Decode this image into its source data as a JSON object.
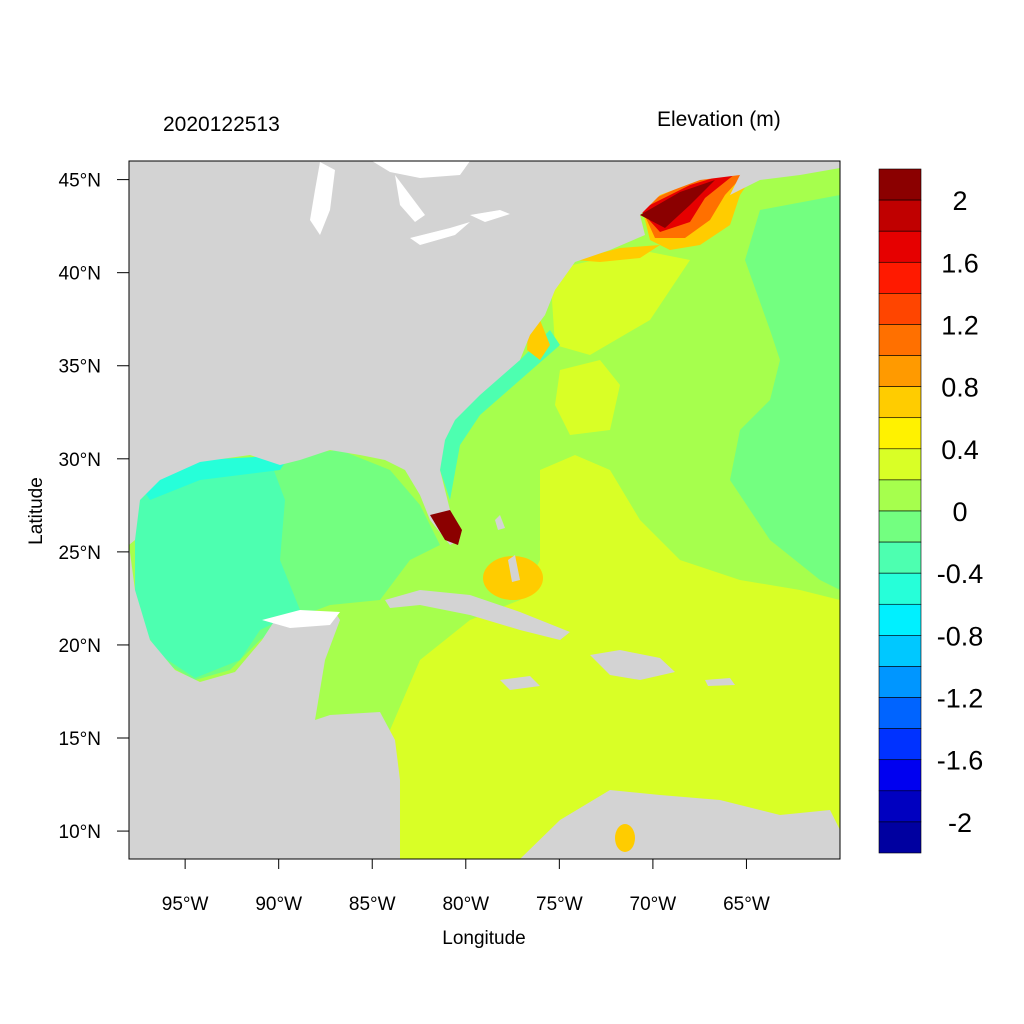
{
  "header": {
    "datetime": "2020122513",
    "variable": "Elevation (m)"
  },
  "map": {
    "x_axis_label": "Longitude",
    "y_axis_label": "Latitude",
    "lon_range": [
      -98,
      -60
    ],
    "lat_range": [
      8.5,
      46
    ],
    "lon_ticks": [
      {
        "value": -95,
        "label": "95°W"
      },
      {
        "value": -90,
        "label": "90°W"
      },
      {
        "value": -85,
        "label": "85°W"
      },
      {
        "value": -80,
        "label": "80°W"
      },
      {
        "value": -75,
        "label": "75°W"
      },
      {
        "value": -70,
        "label": "70°W"
      },
      {
        "value": -65,
        "label": "65°W"
      }
    ],
    "lat_ticks": [
      {
        "value": 45,
        "label": "45°N"
      },
      {
        "value": 40,
        "label": "40°N"
      },
      {
        "value": 35,
        "label": "35°N"
      },
      {
        "value": 30,
        "label": "30°N"
      },
      {
        "value": 25,
        "label": "25°N"
      },
      {
        "value": 20,
        "label": "20°N"
      },
      {
        "value": 15,
        "label": "15°N"
      },
      {
        "value": 10,
        "label": "10°N"
      }
    ],
    "land_color": "#d3d3d3",
    "lake_color": "#ffffff"
  },
  "colorbar": {
    "labels": [
      {
        "value": 2,
        "text": "2"
      },
      {
        "value": 1.6,
        "text": "1.6"
      },
      {
        "value": 1.2,
        "text": "1.2"
      },
      {
        "value": 0.8,
        "text": "0.8"
      },
      {
        "value": 0.4,
        "text": "0.4"
      },
      {
        "value": 0,
        "text": "0"
      },
      {
        "value": -0.4,
        "text": "-0.4"
      },
      {
        "value": -0.8,
        "text": "-0.8"
      },
      {
        "value": -1.2,
        "text": "-1.2"
      },
      {
        "value": -1.6,
        "text": "-1.6"
      },
      {
        "value": -2,
        "text": "-2"
      }
    ],
    "colors_top_to_bottom": [
      "#8b0000",
      "#c00000",
      "#e60000",
      "#ff1a00",
      "#ff4500",
      "#ff7000",
      "#ff9a00",
      "#ffcc00",
      "#fff200",
      "#d9ff26",
      "#a6ff4d",
      "#73ff80",
      "#4dffb0",
      "#26ffd9",
      "#00f0ff",
      "#00c8ff",
      "#0096ff",
      "#0064ff",
      "#0032ff",
      "#0000f0",
      "#0000c0",
      "#0000a0"
    ]
  }
}
